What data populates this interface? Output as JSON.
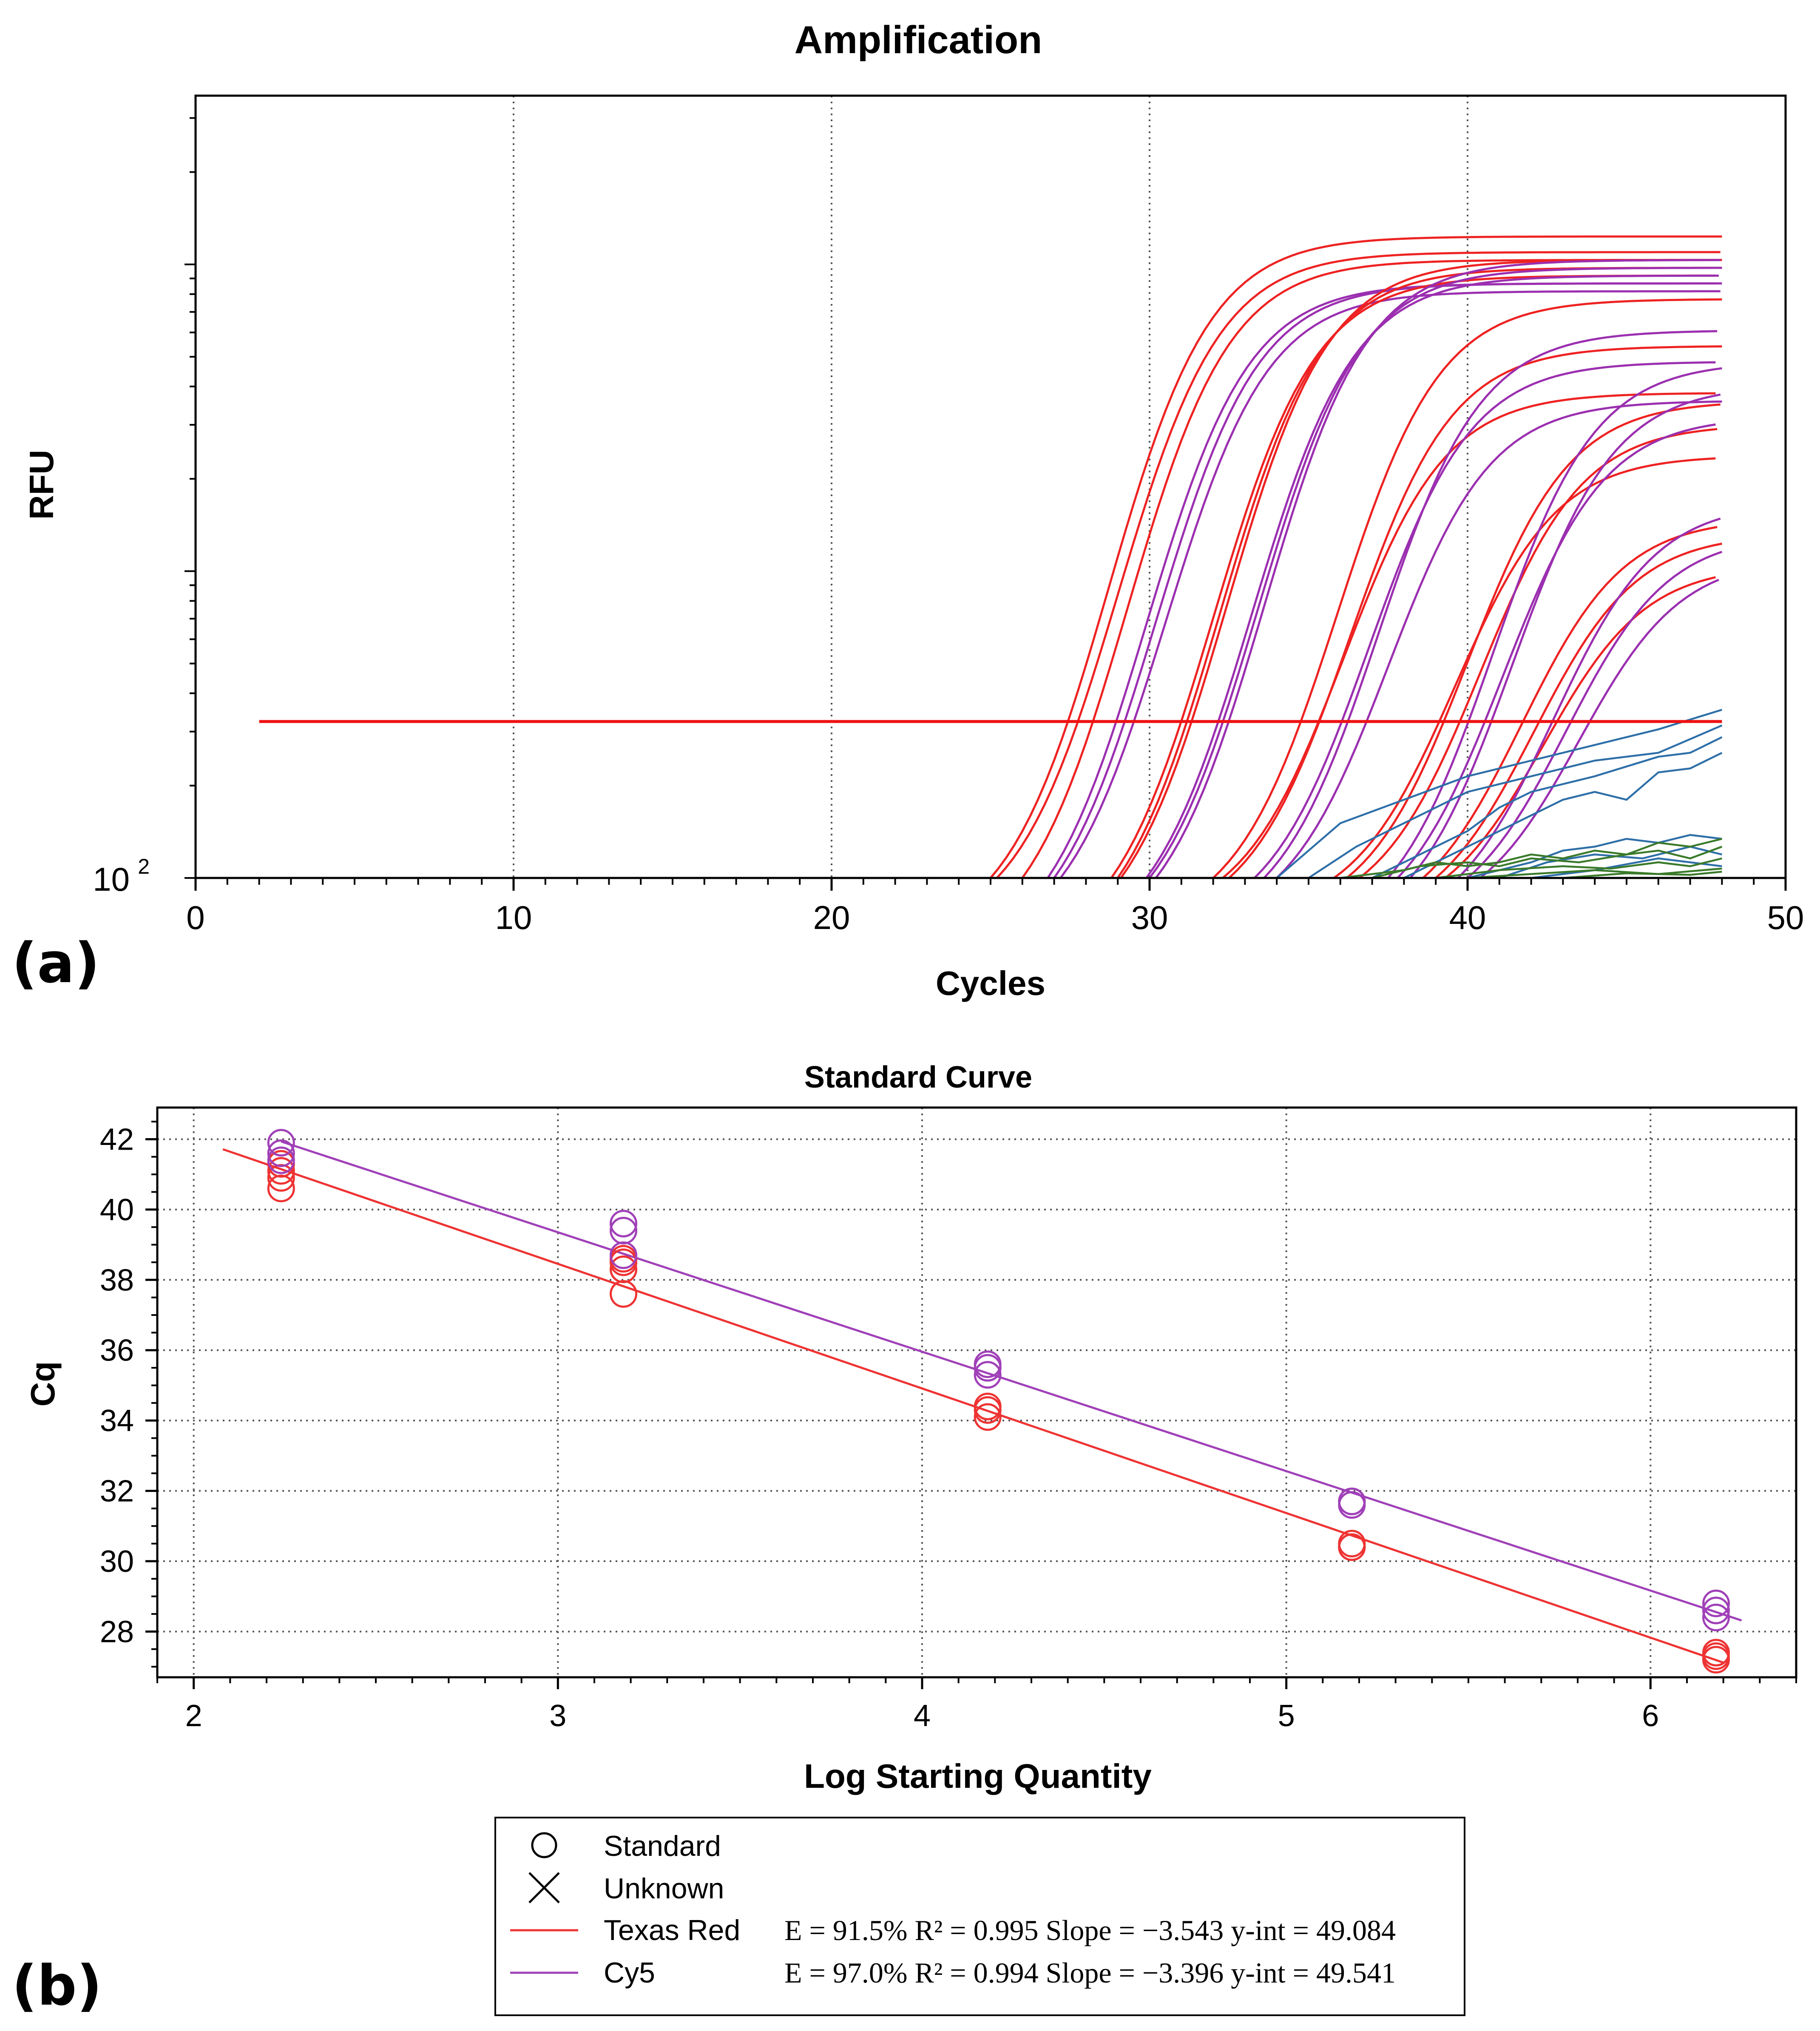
{
  "panel_a_label": "(a)",
  "panel_b_label": "(b)",
  "chart_data": [
    {
      "type": "line",
      "title": "Amplification",
      "xlabel": "Cycles",
      "ylabel": "RFU",
      "xlim": [
        0,
        50
      ],
      "x_ticks": [
        0,
        10,
        20,
        30,
        40,
        50
      ],
      "y_scale": "log",
      "y_tick_label_base": "10",
      "y_tick_label_exp": "2",
      "grid": "vertical dotted",
      "threshold": {
        "x": [
          2,
          48
        ],
        "color": "#ee1111"
      },
      "series": [
        {
          "name": "Texas Red",
          "color": "#ee2222",
          "ct": 27.1,
          "plateau": 0.82,
          "start": 25.0
        },
        {
          "name": "Texas Red",
          "color": "#ee2222",
          "ct": 27.4,
          "plateau": 0.8,
          "start": 25.2
        },
        {
          "name": "Texas Red",
          "color": "#ee2222",
          "ct": 27.7,
          "plateau": 0.79,
          "start": 26.0
        },
        {
          "name": "Cy5",
          "color": "#9b2fb0",
          "ct": 28.3,
          "plateau": 0.76,
          "start": 26.8
        },
        {
          "name": "Cy5",
          "color": "#9b2fb0",
          "ct": 28.6,
          "plateau": 0.76,
          "start": 27.0
        },
        {
          "name": "Cy5",
          "color": "#9b2fb0",
          "ct": 28.9,
          "plateau": 0.75,
          "start": 27.2
        },
        {
          "name": "Texas Red",
          "color": "#ee2222",
          "ct": 30.4,
          "plateau": 0.77,
          "start": 28.8
        },
        {
          "name": "Texas Red",
          "color": "#ee2222",
          "ct": 30.6,
          "plateau": 0.78,
          "start": 29.0
        },
        {
          "name": "Texas Red",
          "color": "#ee2222",
          "ct": 30.8,
          "plateau": 0.79,
          "start": 29.1
        },
        {
          "name": "Cy5",
          "color": "#9b2fb0",
          "ct": 31.6,
          "plateau": 0.77,
          "start": 29.9
        },
        {
          "name": "Cy5",
          "color": "#9b2fb0",
          "ct": 31.8,
          "plateau": 0.78,
          "start": 30.0
        },
        {
          "name": "Cy5",
          "color": "#9b2fb0",
          "ct": 32.0,
          "plateau": 0.79,
          "start": 30.2
        },
        {
          "name": "Texas Red",
          "color": "#ee2222",
          "ct": 34.3,
          "plateau": 0.74,
          "start": 32.0
        },
        {
          "name": "Texas Red",
          "color": "#ee2222",
          "ct": 34.5,
          "plateau": 0.62,
          "start": 32.3
        },
        {
          "name": "Texas Red",
          "color": "#ee2222",
          "ct": 34.7,
          "plateau": 0.68,
          "start": 32.5
        },
        {
          "name": "Cy5",
          "color": "#9b2fb0",
          "ct": 35.3,
          "plateau": 0.66,
          "start": 33.3
        },
        {
          "name": "Cy5",
          "color": "#9b2fb0",
          "ct": 35.6,
          "plateau": 0.7,
          "start": 33.6
        },
        {
          "name": "Cy5",
          "color": "#9b2fb0",
          "ct": 35.9,
          "plateau": 0.61,
          "start": 34.0
        },
        {
          "name": "Texas Red",
          "color": "#ee2222",
          "ct": 38.0,
          "plateau": 0.54,
          "start": 35.8
        },
        {
          "name": "Texas Red",
          "color": "#ee2222",
          "ct": 38.4,
          "plateau": 0.61,
          "start": 36.2
        },
        {
          "name": "Texas Red",
          "color": "#ee2222",
          "ct": 38.8,
          "plateau": 0.58,
          "start": 36.6
        },
        {
          "name": "Cy5",
          "color": "#9b2fb0",
          "ct": 39.2,
          "plateau": 0.66,
          "start": 37.5
        },
        {
          "name": "Cy5",
          "color": "#9b2fb0",
          "ct": 39.5,
          "plateau": 0.59,
          "start": 37.8
        },
        {
          "name": "Cy5",
          "color": "#9b2fb0",
          "ct": 39.8,
          "plateau": 0.63,
          "start": 38.2
        },
        {
          "name": "Texas Red",
          "color": "#ee2222",
          "ct": 40.1,
          "plateau": 0.46,
          "start": 38.6
        },
        {
          "name": "Texas Red",
          "color": "#ee2222",
          "ct": 40.5,
          "plateau": 0.44,
          "start": 39.0
        },
        {
          "name": "Texas Red",
          "color": "#ee2222",
          "ct": 40.8,
          "plateau": 0.4,
          "start": 39.3
        },
        {
          "name": "Cy5",
          "color": "#9b2fb0",
          "ct": 41.1,
          "plateau": 0.48,
          "start": 39.7
        },
        {
          "name": "Cy5",
          "color": "#9b2fb0",
          "ct": 41.5,
          "plateau": 0.44,
          "start": 40.0
        },
        {
          "name": "Cy5",
          "color": "#9b2fb0",
          "ct": 41.9,
          "plateau": 0.41,
          "start": 40.4
        }
      ],
      "baseline_series": [
        {
          "color": "#2e6fa8",
          "pts": [
            [
              34,
              0
            ],
            [
              36,
              0.07
            ],
            [
              38,
              0.1
            ],
            [
              40,
              0.13
            ],
            [
              42,
              0.15
            ],
            [
              44,
              0.17
            ],
            [
              46,
              0.19
            ],
            [
              48,
              0.215
            ]
          ]
        },
        {
          "color": "#2e6fa8",
          "pts": [
            [
              35,
              0
            ],
            [
              36.5,
              0.04
            ],
            [
              38,
              0.07
            ],
            [
              40,
              0.11
            ],
            [
              42,
              0.13
            ],
            [
              43,
              0.14
            ],
            [
              44,
              0.15
            ],
            [
              46,
              0.16
            ],
            [
              48,
              0.195
            ]
          ]
        },
        {
          "color": "#2e6fa8",
          "pts": [
            [
              37,
              0
            ],
            [
              38.5,
              0.03
            ],
            [
              40,
              0.06
            ],
            [
              41,
              0.09
            ],
            [
              42,
              0.11
            ],
            [
              44,
              0.13
            ],
            [
              46,
              0.155
            ],
            [
              47,
              0.16
            ],
            [
              48,
              0.18
            ]
          ]
        },
        {
          "color": "#2e6fa8",
          "pts": [
            [
              38,
              0
            ],
            [
              39.5,
              0.03
            ],
            [
              41,
              0.06
            ],
            [
              42,
              0.08
            ],
            [
              43,
              0.1
            ],
            [
              44,
              0.11
            ],
            [
              45,
              0.1
            ],
            [
              46,
              0.135
            ],
            [
              47,
              0.14
            ],
            [
              48,
              0.16
            ]
          ]
        },
        {
          "color": "#2e6fa8",
          "pts": [
            [
              40,
              0
            ],
            [
              42,
              0.02
            ],
            [
              43,
              0.035
            ],
            [
              44,
              0.04
            ],
            [
              45,
              0.05
            ],
            [
              46,
              0.045
            ],
            [
              47,
              0.055
            ],
            [
              48,
              0.05
            ]
          ]
        },
        {
          "color": "#2e6fa8",
          "pts": [
            [
              41,
              0
            ],
            [
              42.5,
              0.02
            ],
            [
              44,
              0.03
            ],
            [
              45.5,
              0.025
            ],
            [
              47,
              0.04
            ],
            [
              48,
              0.03
            ]
          ]
        },
        {
          "color": "#2e6fa8",
          "pts": [
            [
              42,
              0
            ],
            [
              44,
              0.01
            ],
            [
              46,
              0.025
            ],
            [
              48,
              0.015
            ]
          ]
        },
        {
          "color": "#3a7a2a",
          "pts": [
            [
              36,
              0
            ],
            [
              38,
              0.01
            ],
            [
              39,
              0.02
            ],
            [
              40,
              0.015
            ],
            [
              41,
              0.02
            ],
            [
              42,
              0.03
            ],
            [
              43,
              0.025
            ],
            [
              44,
              0.035
            ],
            [
              45,
              0.03
            ],
            [
              46,
              0.045
            ],
            [
              47,
              0.04
            ],
            [
              48,
              0.05
            ]
          ]
        },
        {
          "color": "#3a7a2a",
          "pts": [
            [
              37,
              0
            ],
            [
              38.5,
              0.015
            ],
            [
              40,
              0.02
            ],
            [
              41,
              0.015
            ],
            [
              42,
              0.025
            ],
            [
              43.5,
              0.02
            ],
            [
              45,
              0.03
            ],
            [
              46,
              0.035
            ],
            [
              47,
              0.025
            ],
            [
              48,
              0.04
            ]
          ]
        },
        {
          "color": "#3a7a2a",
          "pts": [
            [
              39,
              0
            ],
            [
              41,
              0.01
            ],
            [
              43,
              0.015
            ],
            [
              44.5,
              0.012
            ],
            [
              46,
              0.02
            ],
            [
              47,
              0.015
            ],
            [
              48,
              0.025
            ]
          ]
        },
        {
          "color": "#3a7a2a",
          "pts": [
            [
              40,
              0
            ],
            [
              42,
              0.005
            ],
            [
              44,
              0.01
            ],
            [
              46,
              0.005
            ],
            [
              48,
              0.012
            ]
          ]
        },
        {
          "color": "#3a7a2a",
          "pts": [
            [
              43,
              0
            ],
            [
              45,
              0.006
            ],
            [
              47,
              0.004
            ],
            [
              48,
              0.008
            ]
          ]
        }
      ]
    },
    {
      "type": "scatter",
      "title": "Standard Curve",
      "xlabel": "Log Starting Quantity",
      "ylabel": "Cq",
      "xlim": [
        1.9,
        6.4
      ],
      "ylim": [
        26.7,
        42.9
      ],
      "x_ticks": [
        2,
        3,
        4,
        5,
        6
      ],
      "y_ticks": [
        28,
        30,
        32,
        34,
        36,
        38,
        40,
        42
      ],
      "grid": "dotted",
      "series": [
        {
          "name": "Texas Red",
          "color": "#ee3333",
          "x": [
            2.24,
            2.24,
            2.24,
            2.24,
            3.18,
            3.18,
            3.18,
            3.18,
            4.18,
            4.18,
            4.18,
            5.18,
            5.18,
            5.18,
            6.18,
            6.18,
            6.18
          ],
          "y": [
            40.6,
            40.9,
            41.1,
            41.3,
            37.6,
            38.3,
            38.5,
            38.6,
            34.1,
            34.3,
            34.4,
            30.4,
            30.5,
            30.4,
            27.2,
            27.4,
            27.3
          ]
        },
        {
          "name": "Cy5",
          "color": "#a040b8",
          "x": [
            2.24,
            2.24,
            2.24,
            3.18,
            3.18,
            3.18,
            4.18,
            4.18,
            4.18,
            5.18,
            5.18,
            5.18,
            6.18,
            6.18,
            6.18
          ],
          "y": [
            41.4,
            41.6,
            41.9,
            39.4,
            39.6,
            38.7,
            35.3,
            35.5,
            35.6,
            31.6,
            31.7,
            31.7,
            28.4,
            28.6,
            28.8
          ]
        }
      ],
      "fit_lines": [
        {
          "name": "Texas Red",
          "color": "#ee3333",
          "slope": -3.543,
          "intercept": 49.084,
          "x": [
            2.08,
            6.2
          ]
        },
        {
          "name": "Cy5",
          "color": "#a040b8",
          "slope": -3.396,
          "intercept": 49.541,
          "x": [
            2.24,
            6.25
          ]
        }
      ],
      "legend": {
        "placement": "bottom",
        "items": [
          {
            "symbol": "circle",
            "label": "Standard",
            "eq": ""
          },
          {
            "symbol": "x",
            "label": "Unknown",
            "eq": ""
          },
          {
            "symbol": "line",
            "color": "#ee3333",
            "label": "Texas Red",
            "eq": "E = 91.5% R² = 0.995 Slope = −3.543 y-int = 49.084"
          },
          {
            "symbol": "line",
            "color": "#a040b8",
            "label": "Cy5",
            "eq": "E = 97.0% R² = 0.994 Slope = −3.396 y-int = 49.541"
          }
        ]
      }
    }
  ]
}
